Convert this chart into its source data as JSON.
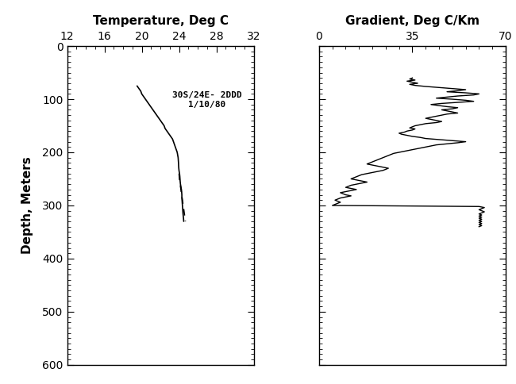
{
  "title_left": "Temperature, Deg C",
  "title_right": "Gradient, Deg C/Km",
  "ylabel": "Depth, Meters",
  "temp_xlim": [
    12,
    32
  ],
  "temp_xticks": [
    12,
    16,
    20,
    24,
    28,
    32
  ],
  "grad_xlim": [
    0,
    70
  ],
  "grad_xticks": [
    0,
    35,
    70
  ],
  "ylim": [
    600,
    0
  ],
  "yticks": [
    0,
    100,
    200,
    300,
    400,
    500,
    600
  ],
  "annotation": "30S/24E- 2DDD\n1/10/80",
  "bg_color": "#ffffff",
  "line_color": "#000000",
  "temp_solid": {
    "depth": [
      75,
      80,
      85,
      90,
      95,
      100,
      105,
      110,
      115,
      120,
      125,
      130,
      135,
      140,
      145,
      150,
      155,
      160,
      165,
      170,
      175,
      180,
      185,
      190,
      195,
      200,
      205,
      210,
      215,
      220,
      225,
      230,
      235,
      240,
      245,
      250,
      255,
      260,
      265,
      270,
      275,
      280,
      285,
      290,
      295,
      300,
      305,
      310,
      315,
      320,
      325,
      330
    ],
    "temp": [
      19.5,
      19.7,
      19.9,
      20.0,
      20.2,
      20.4,
      20.6,
      20.8,
      21.0,
      21.2,
      21.4,
      21.6,
      21.8,
      22.0,
      22.2,
      22.4,
      22.5,
      22.7,
      22.9,
      23.1,
      23.3,
      23.4,
      23.5,
      23.6,
      23.7,
      23.8,
      23.85,
      23.9,
      23.92,
      23.94,
      23.95,
      23.97,
      24.0,
      24.05,
      24.08,
      24.1,
      24.12,
      24.15,
      24.2,
      24.25,
      24.28,
      24.3,
      24.3,
      24.32,
      24.34,
      24.36,
      24.38,
      24.4,
      24.42,
      24.45,
      24.48,
      24.5
    ]
  },
  "temp_dashed": {
    "depth": [
      240,
      245,
      250,
      255,
      260,
      265,
      270,
      275,
      280,
      285,
      290,
      295,
      300,
      305,
      310,
      315,
      320,
      325,
      330
    ],
    "temp": [
      24.0,
      24.02,
      24.04,
      24.08,
      24.12,
      24.16,
      24.2,
      24.24,
      24.28,
      24.32,
      24.36,
      24.4,
      24.44,
      24.48,
      24.52,
      24.56,
      24.6,
      24.64,
      24.68
    ]
  },
  "gradient_data": {
    "depth": [
      60,
      62,
      64,
      66,
      68,
      70,
      72,
      74,
      76,
      78,
      80,
      82,
      84,
      86,
      88,
      90,
      92,
      94,
      96,
      98,
      100,
      102,
      104,
      106,
      108,
      110,
      112,
      114,
      116,
      118,
      120,
      122,
      124,
      126,
      128,
      130,
      132,
      134,
      136,
      138,
      140,
      142,
      144,
      146,
      148,
      150,
      152,
      154,
      156,
      158,
      160,
      162,
      164,
      166,
      168,
      170,
      172,
      174,
      176,
      178,
      180,
      182,
      184,
      186,
      188,
      190,
      192,
      194,
      196,
      198,
      200,
      202,
      204,
      206,
      208,
      210,
      212,
      214,
      216,
      218,
      220,
      222,
      224,
      226,
      228,
      230,
      232,
      234,
      236,
      238,
      240,
      242,
      244,
      246,
      248,
      250,
      252,
      254,
      256,
      258,
      260,
      262,
      264,
      266,
      268,
      270,
      272,
      274,
      276,
      278,
      280,
      282,
      284,
      286,
      288,
      290,
      292,
      294,
      296,
      298,
      300,
      302,
      304,
      306,
      308,
      310,
      312,
      314,
      316,
      318,
      320,
      322,
      324,
      326,
      328,
      330,
      332,
      334,
      336,
      338,
      340
    ],
    "gradient": [
      35,
      34,
      36,
      33,
      35,
      37,
      34,
      36,
      40,
      45,
      50,
      55,
      52,
      48,
      55,
      60,
      58,
      52,
      48,
      44,
      50,
      55,
      58,
      52,
      46,
      42,
      45,
      48,
      52,
      50,
      46,
      48,
      50,
      52,
      48,
      46,
      44,
      42,
      40,
      42,
      44,
      46,
      44,
      40,
      38,
      36,
      35,
      34,
      36,
      35,
      33,
      32,
      30,
      31,
      33,
      35,
      38,
      40,
      45,
      50,
      55,
      52,
      48,
      44,
      42,
      40,
      38,
      36,
      34,
      32,
      30,
      28,
      27,
      26,
      25,
      24,
      23,
      22,
      21,
      20,
      19,
      18,
      20,
      22,
      24,
      26,
      25,
      24,
      22,
      20,
      18,
      16,
      15,
      14,
      13,
      12,
      14,
      16,
      18,
      16,
      14,
      12,
      11,
      10,
      12,
      14,
      12,
      10,
      8,
      9,
      10,
      12,
      10,
      8,
      7,
      6,
      7,
      8,
      7,
      6,
      5,
      60,
      62,
      61,
      60,
      61,
      62,
      61,
      60,
      61,
      60,
      61,
      60,
      61,
      60,
      61,
      60,
      61,
      60,
      61,
      60
    ]
  }
}
